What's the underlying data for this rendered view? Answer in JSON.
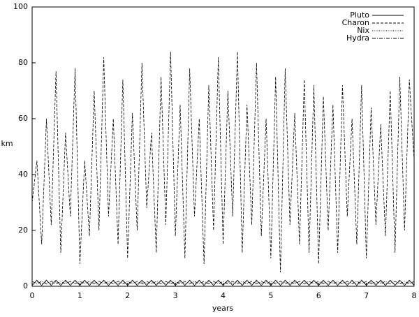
{
  "chart_data": {
    "type": "line",
    "xlabel": "years",
    "ylabel": "km",
    "x": [
      0,
      0.1,
      0.2,
      0.3,
      0.4,
      0.5,
      0.6,
      0.7,
      0.8,
      0.9,
      1,
      1.1,
      1.2,
      1.3,
      1.4,
      1.5,
      1.6,
      1.7,
      1.8,
      1.9,
      2,
      2.1,
      2.2,
      2.3,
      2.4,
      2.5,
      2.6,
      2.7,
      2.8,
      2.9,
      3,
      3.1,
      3.2,
      3.3,
      3.4,
      3.5,
      3.6,
      3.7,
      3.8,
      3.9,
      4,
      4.1,
      4.2,
      4.3,
      4.4,
      4.5,
      4.6,
      4.7,
      4.8,
      4.9,
      5,
      5.1,
      5.2,
      5.3,
      5.4,
      5.5,
      5.6,
      5.7,
      5.8,
      5.9,
      6,
      6.1,
      6.2,
      6.3,
      6.4,
      6.5,
      6.6,
      6.7,
      6.8,
      6.9,
      7,
      7.1,
      7.2,
      7.3,
      7.4,
      7.5,
      7.6,
      7.7,
      7.8,
      7.9,
      8
    ],
    "series": [
      {
        "name": "Pluto",
        "color": "#000000",
        "dash": "solid",
        "values": [
          0.3,
          2.2,
          0.3,
          2.2,
          0.3,
          2.2,
          0.3,
          2.2,
          0.3,
          2.2,
          0.3,
          2.2,
          0.3,
          2.2,
          0.3,
          2.2,
          0.3,
          2.2,
          0.3,
          2.2,
          0.3,
          2.2,
          0.3,
          2.2,
          0.3,
          2.2,
          0.3,
          2.2,
          0.3,
          2.2,
          0.3,
          2.2,
          0.3,
          2.2,
          0.3,
          2.2,
          0.3,
          2.2,
          0.3,
          2.2,
          0.3,
          2.2,
          0.3,
          2.2,
          0.3,
          2.2,
          0.3,
          2.2,
          0.3,
          2.2,
          0.3,
          2.2,
          0.3,
          2.2,
          0.3,
          2.2,
          0.3,
          2.2,
          0.3,
          2.2,
          0.3,
          2.2,
          0.3,
          2.2,
          0.3,
          2.2,
          0.3,
          2.2,
          0.3,
          2.2,
          0.3,
          2.2,
          0.3,
          2.2,
          0.3,
          2.2,
          0.3,
          2.2,
          0.3,
          2.2,
          0.3
        ]
      },
      {
        "name": "Charon",
        "color": "#000000",
        "dash": "dashed",
        "values": [
          30,
          45,
          15,
          60,
          22,
          77,
          12,
          55,
          25,
          78,
          8,
          45,
          18,
          70,
          20,
          82,
          25,
          60,
          15,
          74,
          10,
          62,
          20,
          80,
          28,
          55,
          12,
          75,
          22,
          84,
          18,
          65,
          10,
          78,
          25,
          60,
          8,
          72,
          20,
          82,
          15,
          70,
          25,
          84,
          12,
          65,
          22,
          80,
          18,
          60,
          10,
          75,
          5,
          78,
          22,
          62,
          15,
          74,
          12,
          72,
          8,
          68,
          20,
          65,
          12,
          72,
          25,
          60,
          15,
          72,
          10,
          64,
          22,
          58,
          18,
          70,
          12,
          75,
          20,
          74,
          45
        ]
      },
      {
        "name": "Nix",
        "color": "#000000",
        "dash": "dotted",
        "values": [
          1,
          1.6,
          1,
          1.6,
          1,
          1.6,
          1,
          1.6,
          1,
          1.6,
          1,
          1.6,
          1,
          1.6,
          1,
          1.6,
          1,
          1.6,
          1,
          1.6,
          1,
          1.6,
          1,
          1.6,
          1,
          1.6,
          1,
          1.6,
          1,
          1.6,
          1,
          1.6,
          1,
          1.6,
          1,
          1.6,
          1,
          1.6,
          1,
          1.6,
          1,
          1.6,
          1,
          1.6,
          1,
          1.6,
          1,
          1.6,
          1,
          1.6,
          1,
          1.6,
          1,
          1.6,
          1,
          1.6,
          1,
          1.6,
          1,
          1.6,
          1,
          1.6,
          1,
          1.6,
          1,
          1.6,
          1,
          1.6,
          1,
          1.6,
          1,
          1.6,
          1,
          1.6,
          1,
          1.6,
          1,
          1.6,
          1,
          1.6,
          1
        ]
      },
      {
        "name": "Hydra",
        "color": "#000000",
        "dash": "dashdot",
        "values": [
          1.8,
          0.8,
          1.8,
          0.8,
          1.8,
          0.8,
          1.8,
          0.8,
          1.8,
          0.8,
          1.8,
          0.8,
          1.8,
          0.8,
          1.8,
          0.8,
          1.8,
          0.8,
          1.8,
          0.8,
          1.8,
          0.8,
          1.8,
          0.8,
          1.8,
          0.8,
          1.8,
          0.8,
          1.8,
          0.8,
          1.8,
          0.8,
          1.8,
          0.8,
          1.8,
          0.8,
          1.8,
          0.8,
          1.8,
          0.8,
          1.8,
          0.8,
          1.8,
          0.8,
          1.8,
          0.8,
          1.8,
          0.8,
          1.8,
          0.8,
          1.8,
          0.8,
          1.8,
          0.8,
          1.8,
          0.8,
          1.8,
          0.8,
          1.8,
          0.8,
          1.8,
          0.8,
          1.8,
          0.8,
          1.8,
          0.8,
          1.8,
          0.8,
          1.8,
          0.8,
          1.8,
          0.8,
          1.8,
          0.8,
          1.8,
          0.8,
          1.8,
          0.8,
          1.8,
          0.8,
          1.8
        ]
      }
    ],
    "xlim": [
      0,
      8
    ],
    "xticks": [
      0,
      1,
      2,
      3,
      4,
      5,
      6,
      7,
      8
    ],
    "ylim": [
      0,
      100
    ],
    "yticks": [
      0,
      20,
      40,
      60,
      80,
      100
    ],
    "legend": "top-right"
  }
}
